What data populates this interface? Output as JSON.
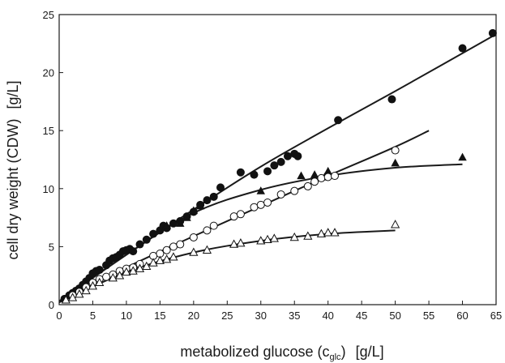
{
  "chart_data": {
    "type": "scatter",
    "xlabel": "metabolized glucose (c",
    "xlabel_sub": "glc",
    "xlabel_tail": ")",
    "xunit": "[g/L]",
    "ylabel": "cell dry weight (CDW)",
    "yunit": "[g/L]",
    "xlim": [
      0,
      65
    ],
    "ylim": [
      0,
      25
    ],
    "xticks": [
      0,
      5,
      10,
      15,
      20,
      25,
      30,
      35,
      40,
      45,
      50,
      55,
      60,
      65
    ],
    "yticks": [
      0,
      5,
      10,
      15,
      20,
      25
    ],
    "grid": false,
    "series": [
      {
        "marker": "filled-circle",
        "points": [
          [
            0.8,
            0.5
          ],
          [
            1.5,
            0.8
          ],
          [
            2,
            1.0
          ],
          [
            2.5,
            1.2
          ],
          [
            3,
            1.4
          ],
          [
            3.5,
            1.7
          ],
          [
            4,
            2.0
          ],
          [
            4.5,
            2.3
          ],
          [
            5,
            2.7
          ],
          [
            5.5,
            2.9
          ],
          [
            6,
            3.0
          ],
          [
            7,
            3.4
          ],
          [
            7.5,
            3.8
          ],
          [
            8,
            4.0
          ],
          [
            8.5,
            4.1
          ],
          [
            9,
            4.3
          ],
          [
            9.5,
            4.6
          ],
          [
            10,
            4.7
          ],
          [
            10.5,
            4.8
          ],
          [
            11,
            4.6
          ],
          [
            12,
            5.2
          ],
          [
            13,
            5.6
          ],
          [
            14,
            6.1
          ],
          [
            15,
            6.4
          ],
          [
            15.5,
            6.8
          ],
          [
            16,
            6.6
          ],
          [
            17,
            7.0
          ],
          [
            18,
            7.2
          ],
          [
            19,
            7.6
          ],
          [
            20,
            8.0
          ],
          [
            21,
            8.6
          ],
          [
            22,
            9.0
          ],
          [
            23,
            9.3
          ],
          [
            24,
            10.1
          ],
          [
            27,
            11.4
          ],
          [
            29,
            11.2
          ],
          [
            31,
            11.5
          ],
          [
            32,
            12.0
          ],
          [
            33,
            12.3
          ],
          [
            34,
            12.8
          ],
          [
            35,
            13.0
          ],
          [
            35.5,
            12.8
          ],
          [
            41.5,
            15.9
          ],
          [
            49.5,
            17.7
          ],
          [
            60,
            22.1
          ],
          [
            64.5,
            23.4
          ]
        ],
        "fit": [
          [
            0,
            0.3
          ],
          [
            10,
            4.3
          ],
          [
            20,
            8.2
          ],
          [
            30,
            11.9
          ],
          [
            40,
            15.2
          ],
          [
            50,
            18.4
          ],
          [
            65,
            23.3
          ]
        ]
      },
      {
        "marker": "filled-triangle",
        "points": [
          [
            16,
            6.8
          ],
          [
            18,
            7.0
          ],
          [
            19,
            7.5
          ],
          [
            20,
            8.1
          ],
          [
            21,
            8.5
          ],
          [
            30,
            9.8
          ],
          [
            36,
            11.1
          ],
          [
            38,
            11.2
          ],
          [
            39.5,
            11.0
          ],
          [
            40,
            11.5
          ],
          [
            50,
            12.2
          ],
          [
            60,
            12.7
          ]
        ],
        "fit": [
          [
            0,
            0.3
          ],
          [
            10,
            4.3
          ],
          [
            20,
            7.9
          ],
          [
            30,
            9.9
          ],
          [
            40,
            11.1
          ],
          [
            50,
            11.8
          ],
          [
            60,
            12.1
          ]
        ]
      },
      {
        "marker": "open-circle",
        "points": [
          [
            2,
            0.8
          ],
          [
            3,
            1.1
          ],
          [
            4,
            1.5
          ],
          [
            5,
            1.9
          ],
          [
            6,
            2.2
          ],
          [
            7,
            2.4
          ],
          [
            8,
            2.6
          ],
          [
            9,
            2.9
          ],
          [
            10,
            3.1
          ],
          [
            11,
            3.2
          ],
          [
            12,
            3.5
          ],
          [
            14,
            4.2
          ],
          [
            15,
            4.4
          ],
          [
            16,
            4.7
          ],
          [
            17,
            5.0
          ],
          [
            18,
            5.2
          ],
          [
            20,
            5.8
          ],
          [
            22,
            6.4
          ],
          [
            23,
            6.8
          ],
          [
            26,
            7.6
          ],
          [
            27,
            7.8
          ],
          [
            29,
            8.4
          ],
          [
            30,
            8.6
          ],
          [
            31,
            8.8
          ],
          [
            33,
            9.5
          ],
          [
            35,
            9.8
          ],
          [
            37,
            10.2
          ],
          [
            38,
            10.6
          ],
          [
            39,
            10.9
          ],
          [
            40,
            11.0
          ],
          [
            41,
            11.1
          ],
          [
            50,
            13.3
          ]
        ],
        "fit": [
          [
            0,
            0.2
          ],
          [
            10,
            3.2
          ],
          [
            20,
            5.9
          ],
          [
            30,
            8.5
          ],
          [
            40,
            11.1
          ],
          [
            50,
            13.6
          ],
          [
            55,
            15.0
          ]
        ]
      },
      {
        "marker": "open-triangle",
        "points": [
          [
            1,
            0.4
          ],
          [
            2,
            0.6
          ],
          [
            3,
            0.9
          ],
          [
            4,
            1.2
          ],
          [
            5,
            1.6
          ],
          [
            6,
            1.9
          ],
          [
            8,
            2.3
          ],
          [
            9,
            2.5
          ],
          [
            10,
            2.8
          ],
          [
            11,
            2.9
          ],
          [
            12,
            3.1
          ],
          [
            13,
            3.3
          ],
          [
            14,
            3.6
          ],
          [
            15,
            3.8
          ],
          [
            16,
            3.9
          ],
          [
            17,
            4.1
          ],
          [
            20,
            4.5
          ],
          [
            22,
            4.7
          ],
          [
            26,
            5.2
          ],
          [
            27,
            5.3
          ],
          [
            30,
            5.5
          ],
          [
            31,
            5.6
          ],
          [
            32,
            5.7
          ],
          [
            35,
            5.8
          ],
          [
            37,
            5.9
          ],
          [
            39,
            6.1
          ],
          [
            40,
            6.2
          ],
          [
            41,
            6.2
          ],
          [
            50,
            6.9
          ]
        ],
        "fit": [
          [
            0,
            0.2
          ],
          [
            10,
            2.8
          ],
          [
            20,
            4.5
          ],
          [
            30,
            5.5
          ],
          [
            40,
            6.1
          ],
          [
            50,
            6.4
          ]
        ]
      }
    ]
  }
}
